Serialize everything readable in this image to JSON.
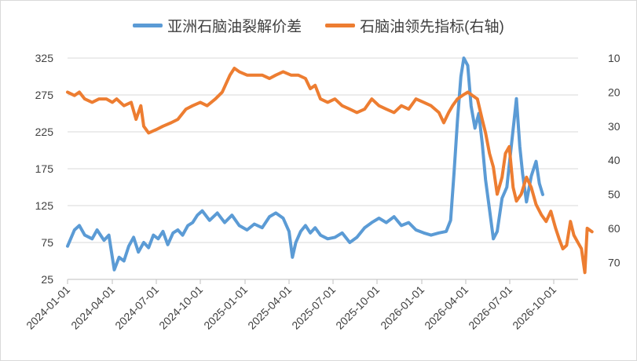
{
  "chart_data": {
    "type": "line",
    "title": "",
    "legend_position": "top",
    "grid": "horizontal",
    "x_ticks": [
      "2024-01-01",
      "2024-04-01",
      "2024-07-01",
      "2024-10-01",
      "2025-01-01",
      "2025-04-01",
      "2025-07-01",
      "2025-10-01",
      "2026-01-01",
      "2026-04-01",
      "2026-07-01",
      "2026-10-01"
    ],
    "y_left": {
      "min": 25,
      "max": 325,
      "ticks": [
        "325",
        "275",
        "225",
        "175",
        "125",
        "75",
        "25"
      ]
    },
    "y_right": {
      "min": 10,
      "max": 75,
      "inverted": true,
      "ticks": [
        "10",
        "20",
        "30",
        "40",
        "50",
        "60",
        "70"
      ]
    },
    "series": [
      {
        "name": "亚洲石脑油裂解价差",
        "axis": "left",
        "color": "#5b9bd5",
        "points": [
          [
            "2024-01-01",
            70
          ],
          [
            "2024-01-15",
            92
          ],
          [
            "2024-01-25",
            98
          ],
          [
            "2024-02-05",
            85
          ],
          [
            "2024-02-20",
            80
          ],
          [
            "2024-03-01",
            92
          ],
          [
            "2024-03-15",
            78
          ],
          [
            "2024-03-25",
            85
          ],
          [
            "2024-04-01",
            55
          ],
          [
            "2024-04-05",
            38
          ],
          [
            "2024-04-15",
            55
          ],
          [
            "2024-04-25",
            50
          ],
          [
            "2024-05-05",
            70
          ],
          [
            "2024-05-15",
            82
          ],
          [
            "2024-05-25",
            62
          ],
          [
            "2024-06-05",
            75
          ],
          [
            "2024-06-15",
            68
          ],
          [
            "2024-06-25",
            85
          ],
          [
            "2024-07-05",
            80
          ],
          [
            "2024-07-15",
            90
          ],
          [
            "2024-07-25",
            72
          ],
          [
            "2024-08-05",
            88
          ],
          [
            "2024-08-15",
            92
          ],
          [
            "2024-08-25",
            85
          ],
          [
            "2024-09-05",
            98
          ],
          [
            "2024-09-15",
            102
          ],
          [
            "2024-09-25",
            112
          ],
          [
            "2024-10-05",
            118
          ],
          [
            "2024-10-20",
            105
          ],
          [
            "2024-11-05",
            115
          ],
          [
            "2024-11-20",
            102
          ],
          [
            "2024-12-05",
            112
          ],
          [
            "2024-12-20",
            98
          ],
          [
            "2025-01-05",
            92
          ],
          [
            "2025-01-20",
            100
          ],
          [
            "2025-02-05",
            95
          ],
          [
            "2025-02-20",
            110
          ],
          [
            "2025-03-05",
            115
          ],
          [
            "2025-03-20",
            108
          ],
          [
            "2025-04-01",
            90
          ],
          [
            "2025-04-08",
            55
          ],
          [
            "2025-04-15",
            75
          ],
          [
            "2025-04-25",
            90
          ],
          [
            "2025-05-05",
            98
          ],
          [
            "2025-05-15",
            88
          ],
          [
            "2025-05-25",
            95
          ],
          [
            "2025-06-05",
            85
          ],
          [
            "2025-06-20",
            80
          ],
          [
            "2025-07-05",
            82
          ],
          [
            "2025-07-20",
            88
          ],
          [
            "2025-08-05",
            75
          ],
          [
            "2025-08-20",
            82
          ],
          [
            "2025-09-05",
            95
          ],
          [
            "2025-09-20",
            102
          ],
          [
            "2025-10-05",
            108
          ],
          [
            "2025-10-20",
            102
          ],
          [
            "2025-11-05",
            110
          ],
          [
            "2025-11-20",
            98
          ],
          [
            "2025-12-05",
            102
          ],
          [
            "2025-12-20",
            92
          ],
          [
            "2026-01-05",
            88
          ],
          [
            "2026-01-20",
            85
          ],
          [
            "2026-02-05",
            88
          ],
          [
            "2026-02-20",
            90
          ],
          [
            "2026-03-01",
            105
          ],
          [
            "2026-03-08",
            170
          ],
          [
            "2026-03-15",
            240
          ],
          [
            "2026-03-22",
            300
          ],
          [
            "2026-03-28",
            325
          ],
          [
            "2026-04-05",
            315
          ],
          [
            "2026-04-12",
            260
          ],
          [
            "2026-04-20",
            230
          ],
          [
            "2026-04-28",
            250
          ],
          [
            "2026-05-05",
            210
          ],
          [
            "2026-05-12",
            160
          ],
          [
            "2026-05-20",
            120
          ],
          [
            "2026-05-28",
            80
          ],
          [
            "2026-06-05",
            90
          ],
          [
            "2026-06-15",
            135
          ],
          [
            "2026-06-25",
            150
          ],
          [
            "2026-07-05",
            210
          ],
          [
            "2026-07-10",
            240
          ],
          [
            "2026-07-15",
            270
          ],
          [
            "2026-07-22",
            205
          ],
          [
            "2026-07-28",
            168
          ],
          [
            "2026-08-05",
            130
          ],
          [
            "2026-08-15",
            165
          ],
          [
            "2026-08-25",
            185
          ],
          [
            "2026-09-01",
            155
          ],
          [
            "2026-09-08",
            140
          ]
        ]
      },
      {
        "name": "石脑油领先指标(右轴)",
        "axis": "right",
        "color": "#ed7d31",
        "points": [
          [
            "2024-01-01",
            20
          ],
          [
            "2024-01-15",
            21
          ],
          [
            "2024-01-25",
            20
          ],
          [
            "2024-02-05",
            22
          ],
          [
            "2024-02-20",
            23
          ],
          [
            "2024-03-05",
            22
          ],
          [
            "2024-03-20",
            22
          ],
          [
            "2024-04-01",
            23
          ],
          [
            "2024-04-10",
            22
          ],
          [
            "2024-04-25",
            24
          ],
          [
            "2024-05-10",
            23
          ],
          [
            "2024-05-20",
            28
          ],
          [
            "2024-05-30",
            24
          ],
          [
            "2024-06-05",
            30
          ],
          [
            "2024-06-15",
            32
          ],
          [
            "2024-07-01",
            31
          ],
          [
            "2024-07-15",
            30
          ],
          [
            "2024-08-01",
            29
          ],
          [
            "2024-08-15",
            28
          ],
          [
            "2024-09-01",
            25
          ],
          [
            "2024-09-15",
            24
          ],
          [
            "2024-10-01",
            23
          ],
          [
            "2024-10-15",
            24
          ],
          [
            "2024-11-01",
            22
          ],
          [
            "2024-11-15",
            20
          ],
          [
            "2024-12-01",
            15
          ],
          [
            "2024-12-10",
            13
          ],
          [
            "2024-12-20",
            14
          ],
          [
            "2025-01-05",
            15
          ],
          [
            "2025-01-20",
            15
          ],
          [
            "2025-02-05",
            15
          ],
          [
            "2025-02-20",
            16
          ],
          [
            "2025-03-05",
            15
          ],
          [
            "2025-03-20",
            14
          ],
          [
            "2025-04-05",
            15
          ],
          [
            "2025-04-20",
            15
          ],
          [
            "2025-05-05",
            16
          ],
          [
            "2025-05-15",
            19
          ],
          [
            "2025-05-25",
            18
          ],
          [
            "2025-06-05",
            22
          ],
          [
            "2025-06-20",
            23
          ],
          [
            "2025-07-05",
            22
          ],
          [
            "2025-07-20",
            24
          ],
          [
            "2025-08-05",
            25
          ],
          [
            "2025-08-20",
            26
          ],
          [
            "2025-09-05",
            25
          ],
          [
            "2025-09-20",
            22
          ],
          [
            "2025-10-05",
            24
          ],
          [
            "2025-10-20",
            25
          ],
          [
            "2025-11-05",
            26
          ],
          [
            "2025-11-20",
            24
          ],
          [
            "2025-12-05",
            25
          ],
          [
            "2025-12-20",
            22
          ],
          [
            "2026-01-05",
            23
          ],
          [
            "2026-01-20",
            24
          ],
          [
            "2026-02-05",
            26
          ],
          [
            "2026-02-15",
            29
          ],
          [
            "2026-02-25",
            26
          ],
          [
            "2026-03-05",
            24
          ],
          [
            "2026-03-15",
            22
          ],
          [
            "2026-03-25",
            21
          ],
          [
            "2026-04-05",
            20
          ],
          [
            "2026-04-15",
            21
          ],
          [
            "2026-04-25",
            22
          ],
          [
            "2026-05-05",
            28
          ],
          [
            "2026-05-12",
            32
          ],
          [
            "2026-05-20",
            38
          ],
          [
            "2026-05-28",
            42
          ],
          [
            "2026-06-05",
            50
          ],
          [
            "2026-06-15",
            45
          ],
          [
            "2026-06-22",
            38
          ],
          [
            "2026-06-30",
            36
          ],
          [
            "2026-07-08",
            48
          ],
          [
            "2026-07-15",
            52
          ],
          [
            "2026-07-25",
            50
          ],
          [
            "2026-08-05",
            45
          ],
          [
            "2026-08-15",
            48
          ],
          [
            "2026-08-25",
            53
          ],
          [
            "2026-09-05",
            56
          ],
          [
            "2026-09-15",
            58
          ],
          [
            "2026-09-25",
            55
          ],
          [
            "2026-10-05",
            60
          ],
          [
            "2026-10-12",
            63
          ],
          [
            "2026-10-20",
            66
          ],
          [
            "2026-10-28",
            65
          ],
          [
            "2026-11-05",
            58
          ],
          [
            "2026-11-12",
            62
          ],
          [
            "2026-11-20",
            64
          ],
          [
            "2026-11-28",
            66
          ],
          [
            "2026-12-05",
            73
          ],
          [
            "2026-12-10",
            60
          ],
          [
            "2026-12-20",
            61
          ]
        ]
      }
    ]
  }
}
